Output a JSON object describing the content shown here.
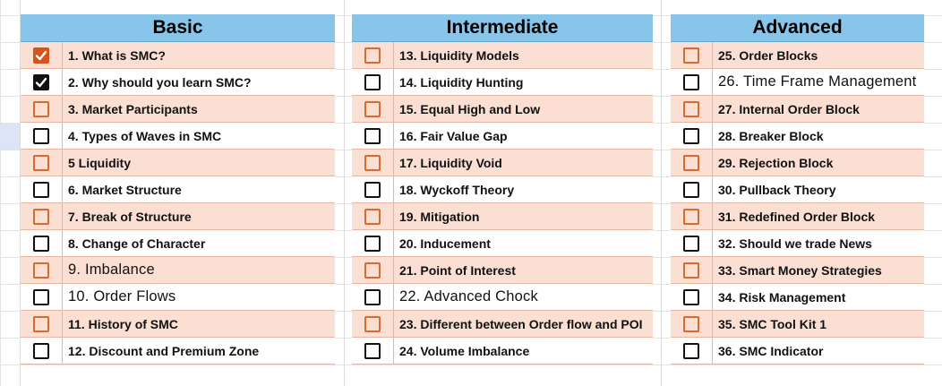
{
  "panels": [
    {
      "title": "Basic",
      "items": [
        {
          "label": "1. What is SMC?",
          "checked": true
        },
        {
          "label": "2. Why should you learn SMC?",
          "checked": true
        },
        {
          "label": "3. Market Participants",
          "checked": false
        },
        {
          "label": "4. Types of Waves in SMC",
          "checked": false
        },
        {
          "label": "5 Liquidity",
          "checked": false
        },
        {
          "label": "6. Market Structure",
          "checked": false
        },
        {
          "label": "7. Break of Structure",
          "checked": false
        },
        {
          "label": "8. Change of Character",
          "checked": false
        },
        {
          "label": "9. Imbalance",
          "checked": false
        },
        {
          "label": "10. Order Flows",
          "checked": false
        },
        {
          "label": "11. History of SMC",
          "checked": false
        },
        {
          "label": "12. Discount and Premium Zone",
          "checked": false
        }
      ]
    },
    {
      "title": "Intermediate",
      "items": [
        {
          "label": "13. Liquidity Models",
          "checked": false
        },
        {
          "label": "14. Liquidity Hunting",
          "checked": false
        },
        {
          "label": "15. Equal High and Low",
          "checked": false
        },
        {
          "label": "16. Fair Value Gap",
          "checked": false
        },
        {
          "label": "17. Liquidity Void",
          "checked": false
        },
        {
          "label": "18. Wyckoff Theory",
          "checked": false
        },
        {
          "label": "19. Mitigation",
          "checked": false
        },
        {
          "label": "20. Inducement",
          "checked": false
        },
        {
          "label": "21. Point of Interest",
          "checked": false
        },
        {
          "label": "22. Advanced Chock",
          "checked": false
        },
        {
          "label": "23. Different between Order flow and POI",
          "checked": false
        },
        {
          "label": "24. Volume Imbalance",
          "checked": false
        }
      ]
    },
    {
      "title": "Advanced",
      "items": [
        {
          "label": "25. Order Blocks",
          "checked": false
        },
        {
          "label": "26. Time Frame Management",
          "checked": false
        },
        {
          "label": "27. Internal Order Block",
          "checked": false
        },
        {
          "label": "28. Breaker Block",
          "checked": false
        },
        {
          "label": "29. Rejection Block",
          "checked": false
        },
        {
          "label": "30. Pullback Theory",
          "checked": false
        },
        {
          "label": "31. Redefined Order Block",
          "checked": false
        },
        {
          "label": "32. Should we trade News",
          "checked": false
        },
        {
          "label": "33. Smart Money Strategies",
          "checked": false
        },
        {
          "label": "34. Risk Management",
          "checked": false
        },
        {
          "label": "35. SMC Tool Kit 1",
          "checked": false
        },
        {
          "label": "36. SMC Indicator",
          "checked": false
        }
      ]
    }
  ],
  "colors": {
    "header": "#87c6ea",
    "alt_row": "#fbdfd3",
    "orange_checkbox": "#d8692f",
    "black_checkbox": "#111111"
  }
}
